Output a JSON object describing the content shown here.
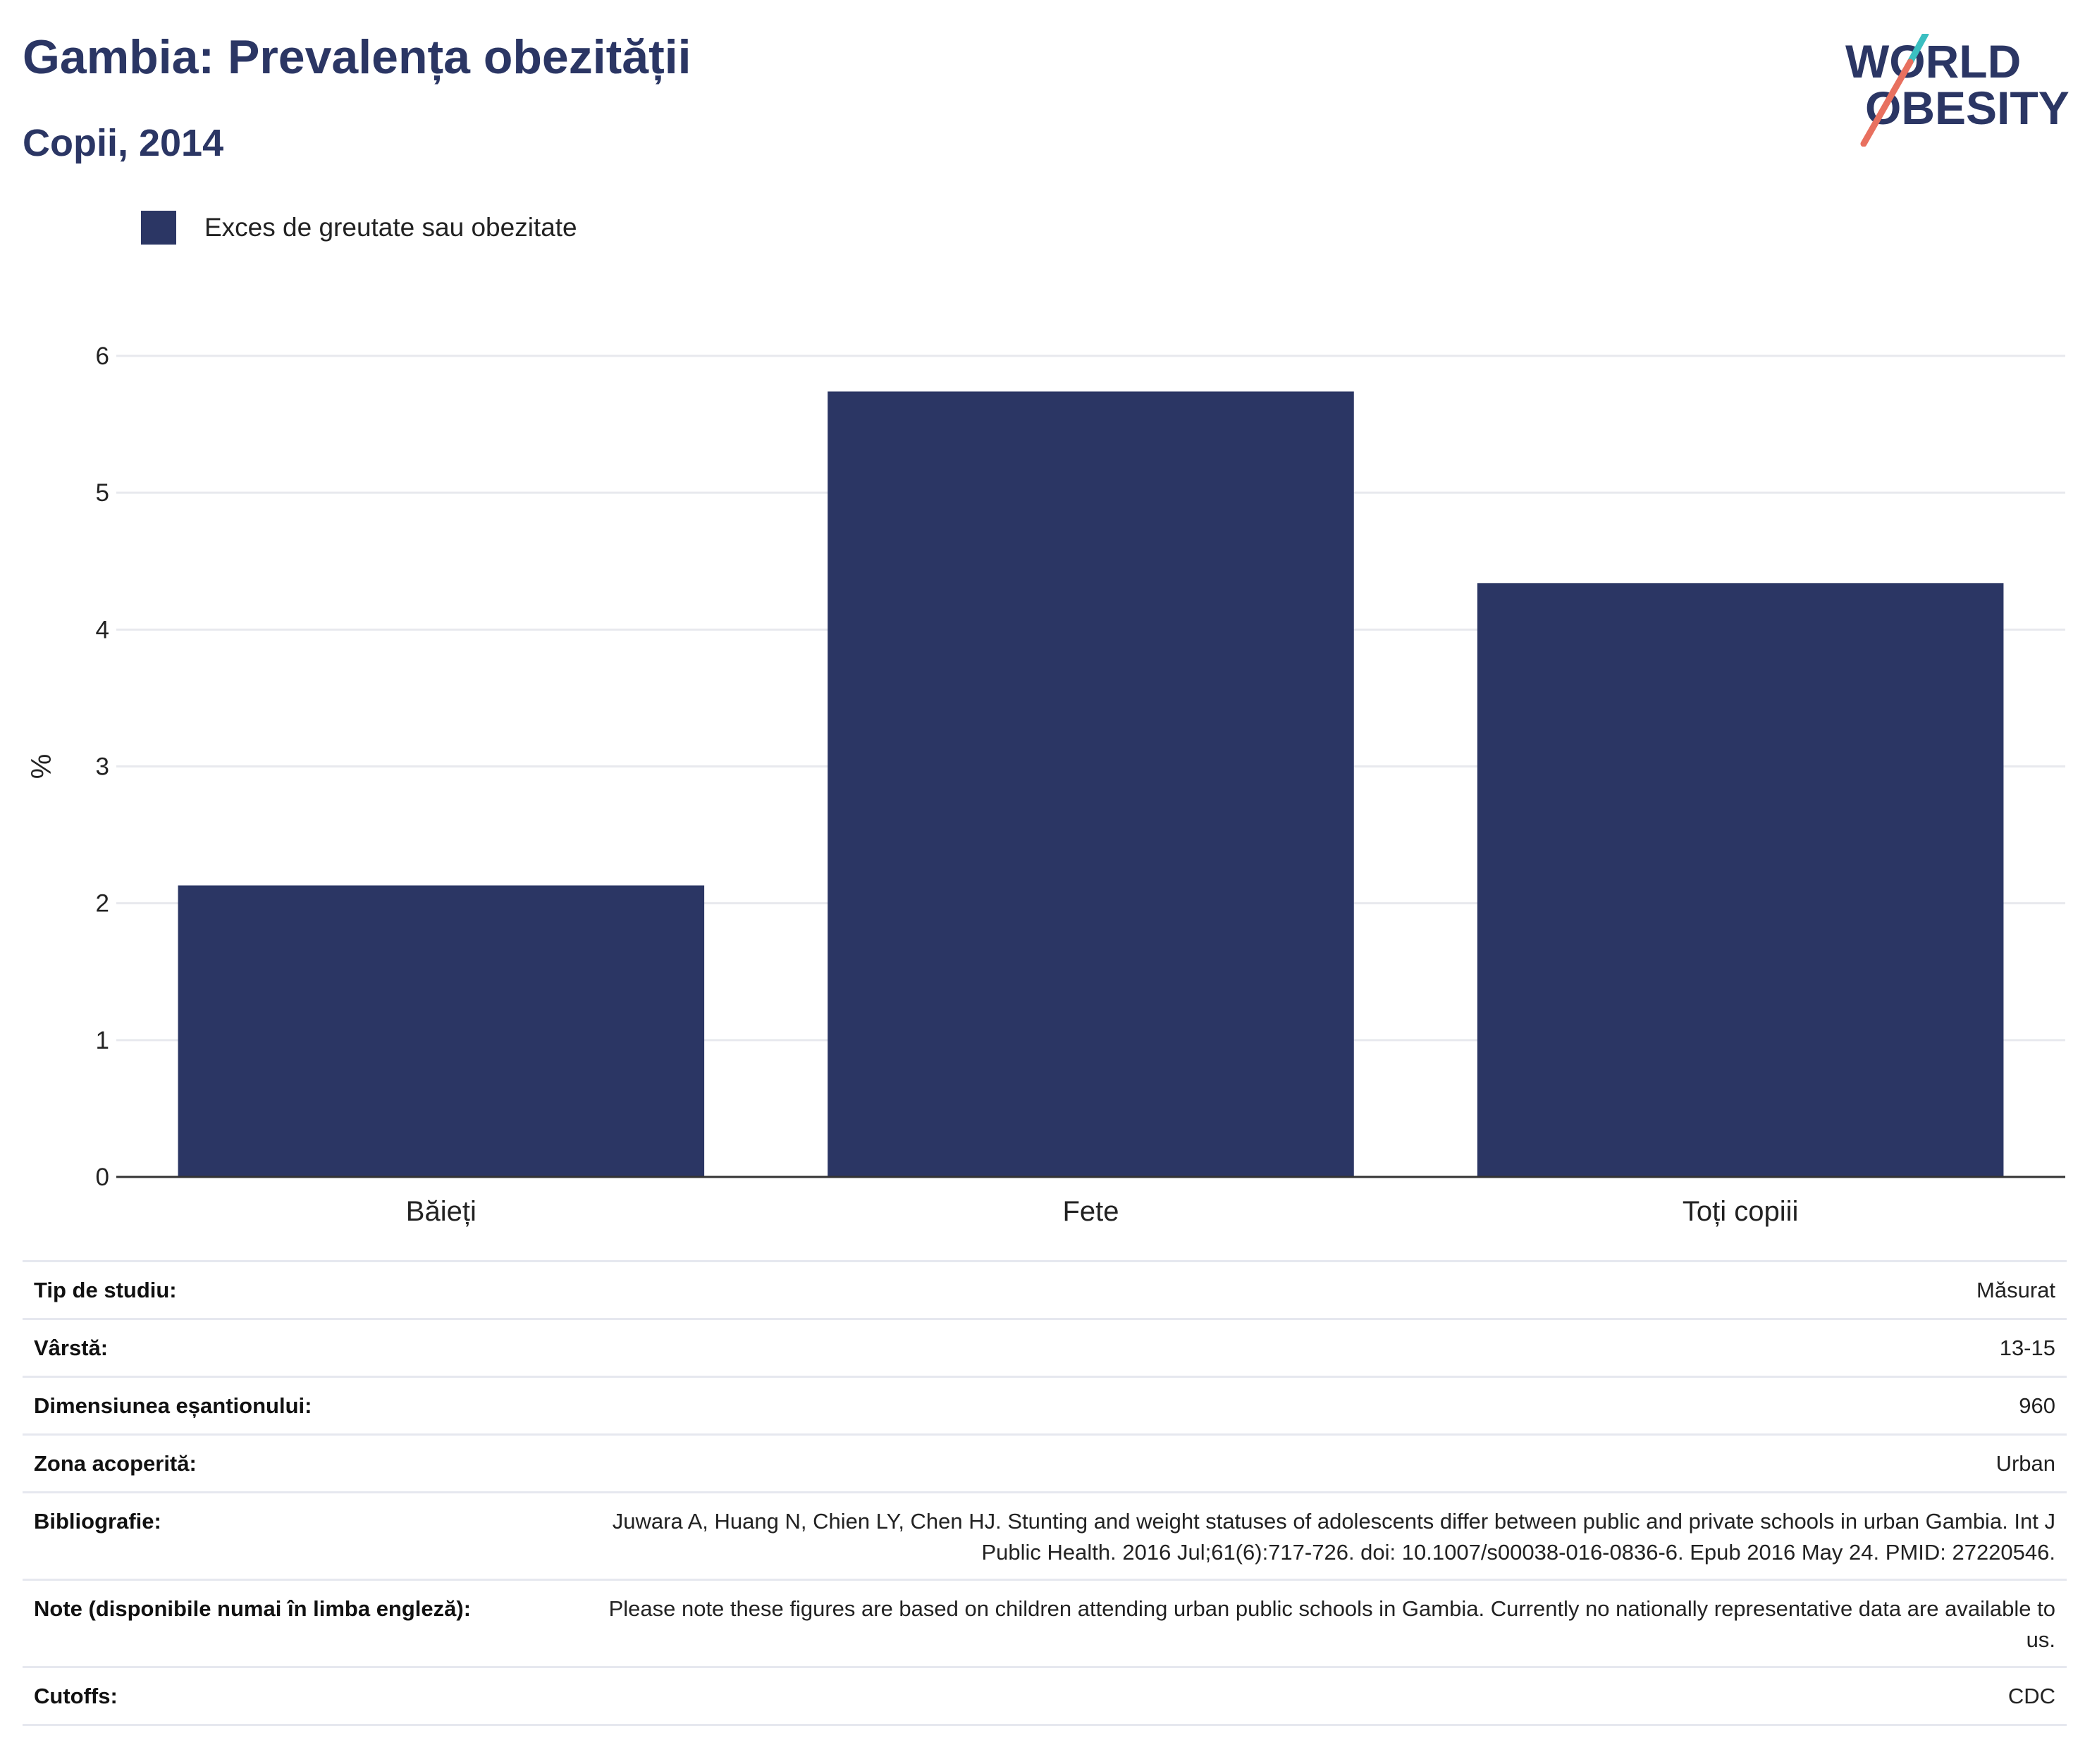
{
  "header": {
    "title": "Gambia: Prevalența obezității",
    "subtitle": "Copii, 2014"
  },
  "logo": {
    "line1": "WORLD",
    "line2": "OBESITY",
    "colors": {
      "text": "#2b3664",
      "slash_top": "#3bbfc1",
      "slash_bottom": "#e8705f"
    }
  },
  "legend": {
    "label": "Exces de greutate sau obezitate",
    "color": "#2b3664"
  },
  "chart_data": {
    "type": "bar",
    "categories": [
      "Băieți",
      "Fete",
      "Toți copiii"
    ],
    "series": [
      {
        "name": "Exces de greutate sau obezitate",
        "values": [
          2.13,
          5.74,
          4.34
        ],
        "color": "#2b3664"
      }
    ],
    "ylabel": "%",
    "ylim": [
      0,
      6
    ],
    "yticks": [
      0,
      1,
      2,
      3,
      4,
      5,
      6
    ],
    "grid": true,
    "legend_position": "top-left"
  },
  "info": [
    {
      "key": "Tip de studiu:",
      "value": "Măsurat"
    },
    {
      "key": "Vârstă:",
      "value": "13-15"
    },
    {
      "key": "Dimensiunea eșantionului:",
      "value": "960"
    },
    {
      "key": "Zona acoperită:",
      "value": "Urban"
    },
    {
      "key": "Bibliografie:",
      "value": "Juwara A, Huang N, Chien LY, Chen HJ. Stunting and weight statuses of adolescents differ between public and private schools in urban Gambia. Int J Public Health. 2016 Jul;61(6):717-726. doi: 10.1007/s00038-016-0836-6. Epub 2016 May 24. PMID: 27220546."
    },
    {
      "key": "Note (disponibile numai în limba engleză):",
      "value": "Please note these figures are based on children attending urban public schools in Gambia. Currently no nationally representative data are available to us."
    },
    {
      "key": "Cutoffs:",
      "value": "CDC"
    }
  ]
}
